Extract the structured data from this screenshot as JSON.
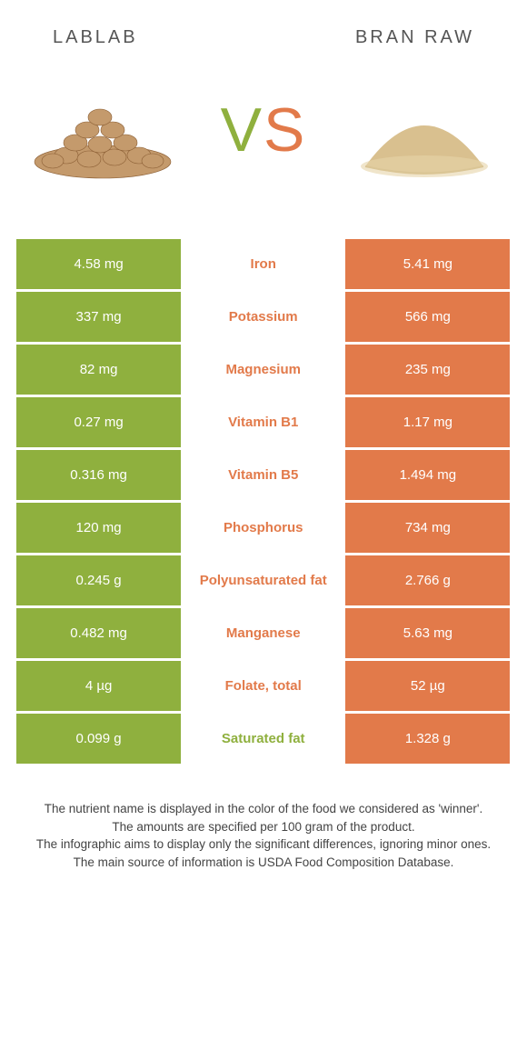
{
  "header": {
    "left_title": "LABLAB",
    "right_title": "BRAN RAW",
    "vs_v": "V",
    "vs_s": "S"
  },
  "colors": {
    "green": "#8fb03e",
    "orange": "#e27a4a",
    "text": "#555555",
    "background": "#ffffff"
  },
  "comparison": {
    "left_color": "green",
    "right_color": "orange",
    "rows": [
      {
        "left": "4.58 mg",
        "label": "Iron",
        "right": "5.41 mg",
        "winner": "orange"
      },
      {
        "left": "337 mg",
        "label": "Potassium",
        "right": "566 mg",
        "winner": "orange"
      },
      {
        "left": "82 mg",
        "label": "Magnesium",
        "right": "235 mg",
        "winner": "orange"
      },
      {
        "left": "0.27 mg",
        "label": "Vitamin B1",
        "right": "1.17 mg",
        "winner": "orange"
      },
      {
        "left": "0.316 mg",
        "label": "Vitamin B5",
        "right": "1.494 mg",
        "winner": "orange"
      },
      {
        "left": "120 mg",
        "label": "Phosphorus",
        "right": "734 mg",
        "winner": "orange"
      },
      {
        "left": "0.245 g",
        "label": "Polyunsaturated fat",
        "right": "2.766 g",
        "winner": "orange"
      },
      {
        "left": "0.482 mg",
        "label": "Manganese",
        "right": "5.63 mg",
        "winner": "orange"
      },
      {
        "left": "4 µg",
        "label": "Folate, total",
        "right": "52 µg",
        "winner": "orange"
      },
      {
        "left": "0.099 g",
        "label": "Saturated fat",
        "right": "1.328 g",
        "winner": "green"
      }
    ]
  },
  "footnotes": [
    "The nutrient name is displayed in the color of the food we considered as 'winner'.",
    "The amounts are specified per 100 gram of the product.",
    "The infographic aims to display only the significant differences, ignoring minor ones.",
    "The main source of information is USDA Food Composition Database."
  ]
}
